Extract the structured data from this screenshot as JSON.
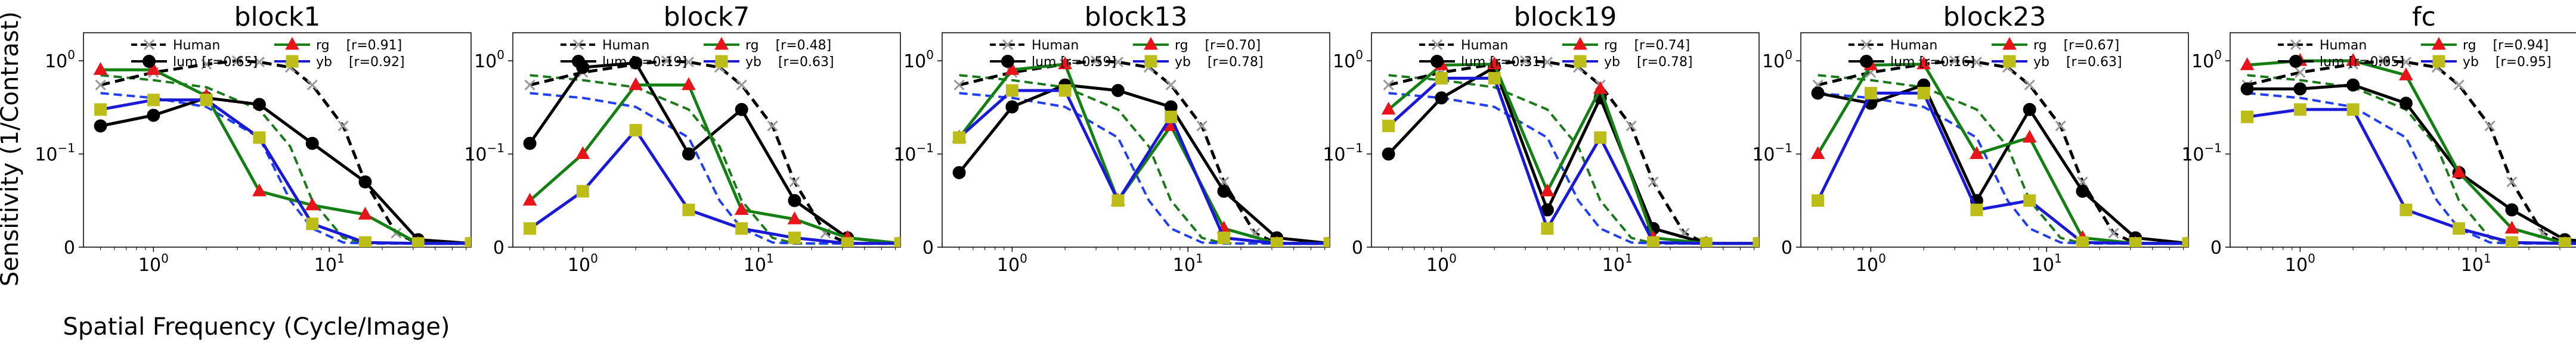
{
  "figure": {
    "ylabel": "Sensitivity (1/Contrast)",
    "xlabel": "Spatial Frequency (Cycle/Image)"
  },
  "legend_labels": {
    "human": "Human",
    "lum": "lum",
    "rg": "rg",
    "yb": "yb"
  },
  "colors": {
    "human": "#000000",
    "lum": "#000000",
    "rg": "#148014",
    "yb": "#1a1ad6",
    "rg_marker": "#e8141a",
    "yb_marker": "#bdbd1a",
    "lum_human": "#000000",
    "rg_human": "#1a7a1a",
    "yb_human": "#1f3ff0",
    "human_marker": "#999999"
  },
  "chart_data": [
    {
      "type": "line",
      "title": "block1",
      "xscale": "log",
      "yscale": "symlog",
      "xlim": [
        0.4,
        64
      ],
      "ylim": [
        0,
        2
      ],
      "x_ticks": [
        "10^0",
        "10^1"
      ],
      "y_ticks": [
        "0",
        "10^-1",
        "10^0"
      ],
      "correlations": {
        "lum": "[r=0.65]",
        "rg": "[r=0.91]",
        "yb": "[r=0.92]"
      },
      "x": [
        0.5,
        1,
        2,
        4,
        8,
        16,
        32,
        64
      ],
      "series": [
        {
          "name": "lum",
          "values": [
            0.2,
            0.26,
            0.4,
            0.34,
            0.13,
            0.07,
            0.008,
            0.004
          ]
        },
        {
          "name": "rg",
          "values": [
            0.8,
            0.8,
            0.42,
            0.06,
            0.045,
            0.035,
            0.004,
            0.004
          ]
        },
        {
          "name": "yb",
          "values": [
            0.3,
            0.38,
            0.38,
            0.15,
            0.025,
            0.005,
            0.004,
            0.004
          ]
        }
      ]
    },
    {
      "type": "line",
      "title": "block7",
      "xscale": "log",
      "yscale": "symlog",
      "xlim": [
        0.4,
        64
      ],
      "ylim": [
        0,
        2
      ],
      "x_ticks": [
        "10^0",
        "10^1"
      ],
      "y_ticks": [
        "0",
        "10^-1",
        "10^0"
      ],
      "correlations": {
        "lum": "[r=0.19]",
        "rg": "[r=0.48]",
        "yb": "[r=0.63]"
      },
      "x": [
        0.5,
        1,
        2,
        4,
        8,
        16,
        32,
        64
      ],
      "series": [
        {
          "name": "lum",
          "values": [
            0.13,
            0.85,
            0.95,
            0.1,
            0.3,
            0.05,
            0.01,
            0.004
          ]
        },
        {
          "name": "rg",
          "values": [
            0.05,
            0.1,
            0.55,
            0.55,
            0.04,
            0.03,
            0.01,
            0.004
          ]
        },
        {
          "name": "yb",
          "values": [
            0.02,
            0.06,
            0.18,
            0.04,
            0.02,
            0.01,
            0.004,
            0.004
          ]
        }
      ]
    },
    {
      "type": "line",
      "title": "block13",
      "xscale": "log",
      "yscale": "symlog",
      "xlim": [
        0.4,
        64
      ],
      "ylim": [
        0,
        2
      ],
      "x_ticks": [
        "10^0",
        "10^1"
      ],
      "y_ticks": [
        "0",
        "10^-1",
        "10^0"
      ],
      "correlations": {
        "lum": "[r=0.59]",
        "rg": "[r=0.70]",
        "yb": "[r=0.78]"
      },
      "x": [
        0.5,
        1,
        2,
        4,
        8,
        16,
        32,
        64
      ],
      "series": [
        {
          "name": "lum",
          "values": [
            0.08,
            0.32,
            0.55,
            0.48,
            0.32,
            0.06,
            0.01,
            0.004
          ]
        },
        {
          "name": "rg",
          "values": [
            0.15,
            0.8,
            0.92,
            0.05,
            0.2,
            0.02,
            0.004,
            0.004
          ]
        },
        {
          "name": "yb",
          "values": [
            0.15,
            0.48,
            0.48,
            0.05,
            0.25,
            0.01,
            0.004,
            0.004
          ]
        }
      ]
    },
    {
      "type": "line",
      "title": "block19",
      "xscale": "log",
      "yscale": "symlog",
      "xlim": [
        0.4,
        64
      ],
      "ylim": [
        0,
        2
      ],
      "x_ticks": [
        "10^0",
        "10^1"
      ],
      "y_ticks": [
        "0",
        "10^-1",
        "10^0"
      ],
      "correlations": {
        "lum": "[r=0.31]",
        "rg": "[r=0.74]",
        "yb": "[r=0.78]"
      },
      "x": [
        0.5,
        1,
        2,
        4,
        8,
        16,
        32,
        64
      ],
      "series": [
        {
          "name": "lum",
          "values": [
            0.1,
            0.4,
            0.85,
            0.04,
            0.4,
            0.02,
            0.004,
            0.004
          ]
        },
        {
          "name": "rg",
          "values": [
            0.3,
            0.9,
            0.92,
            0.06,
            0.5,
            0.01,
            0.004,
            0.004
          ]
        },
        {
          "name": "yb",
          "values": [
            0.2,
            0.65,
            0.65,
            0.02,
            0.15,
            0.005,
            0.004,
            0.004
          ]
        }
      ]
    },
    {
      "type": "line",
      "title": "block23",
      "xscale": "log",
      "yscale": "symlog",
      "xlim": [
        0.4,
        64
      ],
      "ylim": [
        0,
        2
      ],
      "x_ticks": [
        "10^0",
        "10^1"
      ],
      "y_ticks": [
        "0",
        "10^-1",
        "10^0"
      ],
      "correlations": {
        "lum": "[r=0.16]",
        "rg": "[r=0.67]",
        "yb": "[r=0.63]"
      },
      "x": [
        0.5,
        1,
        2,
        4,
        8,
        16,
        32,
        64
      ],
      "series": [
        {
          "name": "lum",
          "values": [
            0.45,
            0.35,
            0.55,
            0.05,
            0.3,
            0.06,
            0.01,
            0.004
          ]
        },
        {
          "name": "rg",
          "values": [
            0.1,
            0.9,
            0.92,
            0.1,
            0.15,
            0.01,
            0.004,
            0.004
          ]
        },
        {
          "name": "yb",
          "values": [
            0.05,
            0.45,
            0.45,
            0.04,
            0.05,
            0.005,
            0.004,
            0.004
          ]
        }
      ]
    },
    {
      "type": "line",
      "title": "fc",
      "xscale": "log",
      "yscale": "symlog",
      "xlim": [
        0.4,
        64
      ],
      "ylim": [
        0,
        2
      ],
      "x_ticks": [
        "10^0",
        "10^1"
      ],
      "y_ticks": [
        "0",
        "10^-1",
        "10^0"
      ],
      "correlations": {
        "lum": "[r=0.05]",
        "rg": "[r=0.94]",
        "yb": "[r=0.95]"
      },
      "x": [
        0.5,
        1,
        2,
        4,
        8,
        16,
        32,
        64
      ],
      "series": [
        {
          "name": "lum",
          "values": [
            0.5,
            0.5,
            0.55,
            0.35,
            0.08,
            0.04,
            0.008,
            0.004
          ]
        },
        {
          "name": "rg",
          "values": [
            0.9,
            1.0,
            1.0,
            0.7,
            0.08,
            0.02,
            0.004,
            0.004
          ]
        },
        {
          "name": "yb",
          "values": [
            0.25,
            0.3,
            0.3,
            0.04,
            0.02,
            0.005,
            0.004,
            0.004
          ]
        }
      ]
    }
  ]
}
